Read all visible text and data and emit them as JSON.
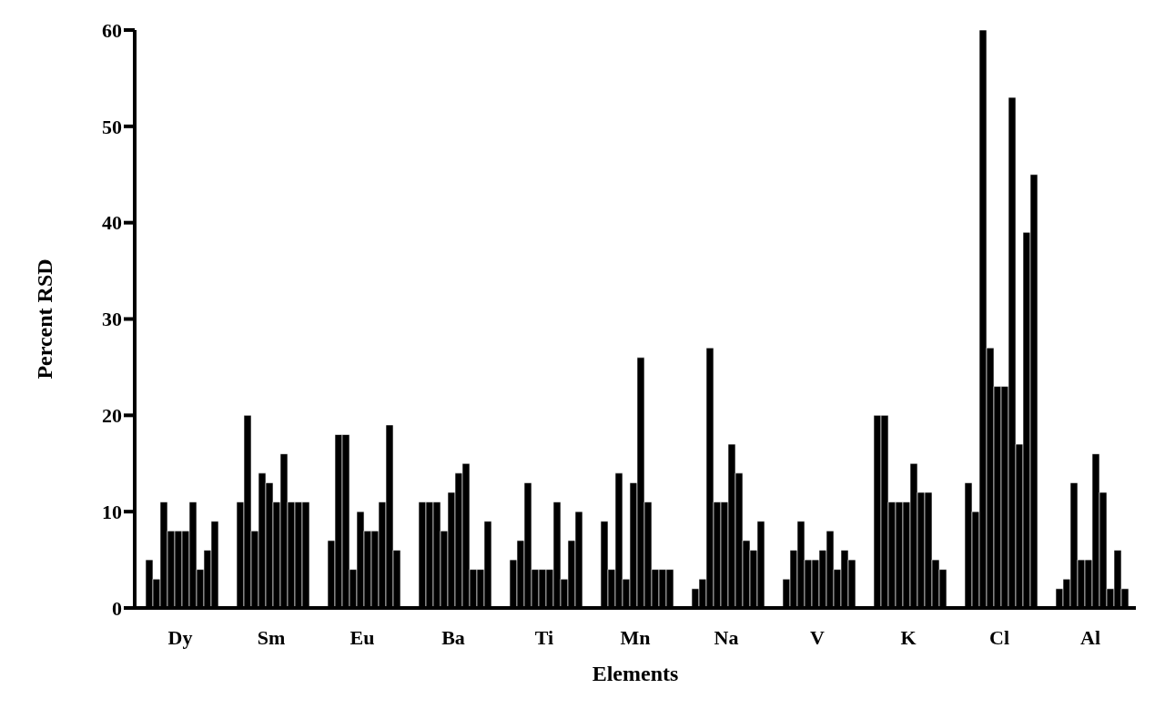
{
  "chart_data": {
    "type": "bar",
    "xlabel": "Elements",
    "ylabel": "Percent RSD",
    "categories": [
      "Dy",
      "Sm",
      "Eu",
      "Ba",
      "Ti",
      "Mn",
      "Na",
      "V",
      "K",
      "Cl",
      "Al"
    ],
    "series": [
      {
        "color": "#000000",
        "values": [
          5,
          11,
          7,
          11,
          5,
          9,
          2,
          3,
          20,
          13,
          2
        ]
      },
      {
        "color": "#000000",
        "values": [
          3,
          20,
          18,
          11,
          7,
          4,
          3,
          6,
          20,
          10,
          3
        ]
      },
      {
        "color": "#000000",
        "values": [
          11,
          8,
          18,
          11,
          13,
          14,
          27,
          9,
          11,
          60,
          13
        ]
      },
      {
        "color": "#000000",
        "values": [
          8,
          14,
          4,
          8,
          4,
          3,
          11,
          5,
          11,
          27,
          5
        ]
      },
      {
        "color": "#000000",
        "values": [
          8,
          13,
          10,
          12,
          4,
          13,
          11,
          5,
          11,
          23,
          5
        ]
      },
      {
        "color": "#000000",
        "values": [
          8,
          11,
          8,
          14,
          4,
          26,
          17,
          6,
          15,
          23,
          16
        ]
      },
      {
        "color": "#000000",
        "values": [
          11,
          16,
          8,
          15,
          11,
          11,
          14,
          8,
          12,
          53,
          12
        ]
      },
      {
        "color": "#000000",
        "values": [
          4,
          11,
          11,
          4,
          3,
          4,
          7,
          4,
          12,
          17,
          2
        ]
      },
      {
        "color": "#000000",
        "values": [
          6,
          11,
          19,
          4,
          7,
          4,
          6,
          6,
          5,
          39,
          6
        ]
      },
      {
        "color": "#000000",
        "values": [
          9,
          11,
          6,
          9,
          10,
          4,
          9,
          5,
          4,
          45,
          2
        ]
      }
    ],
    "ylim": [
      0,
      60
    ],
    "yticks": [
      0,
      10,
      20,
      30,
      40,
      50,
      60
    ],
    "grid": false
  }
}
